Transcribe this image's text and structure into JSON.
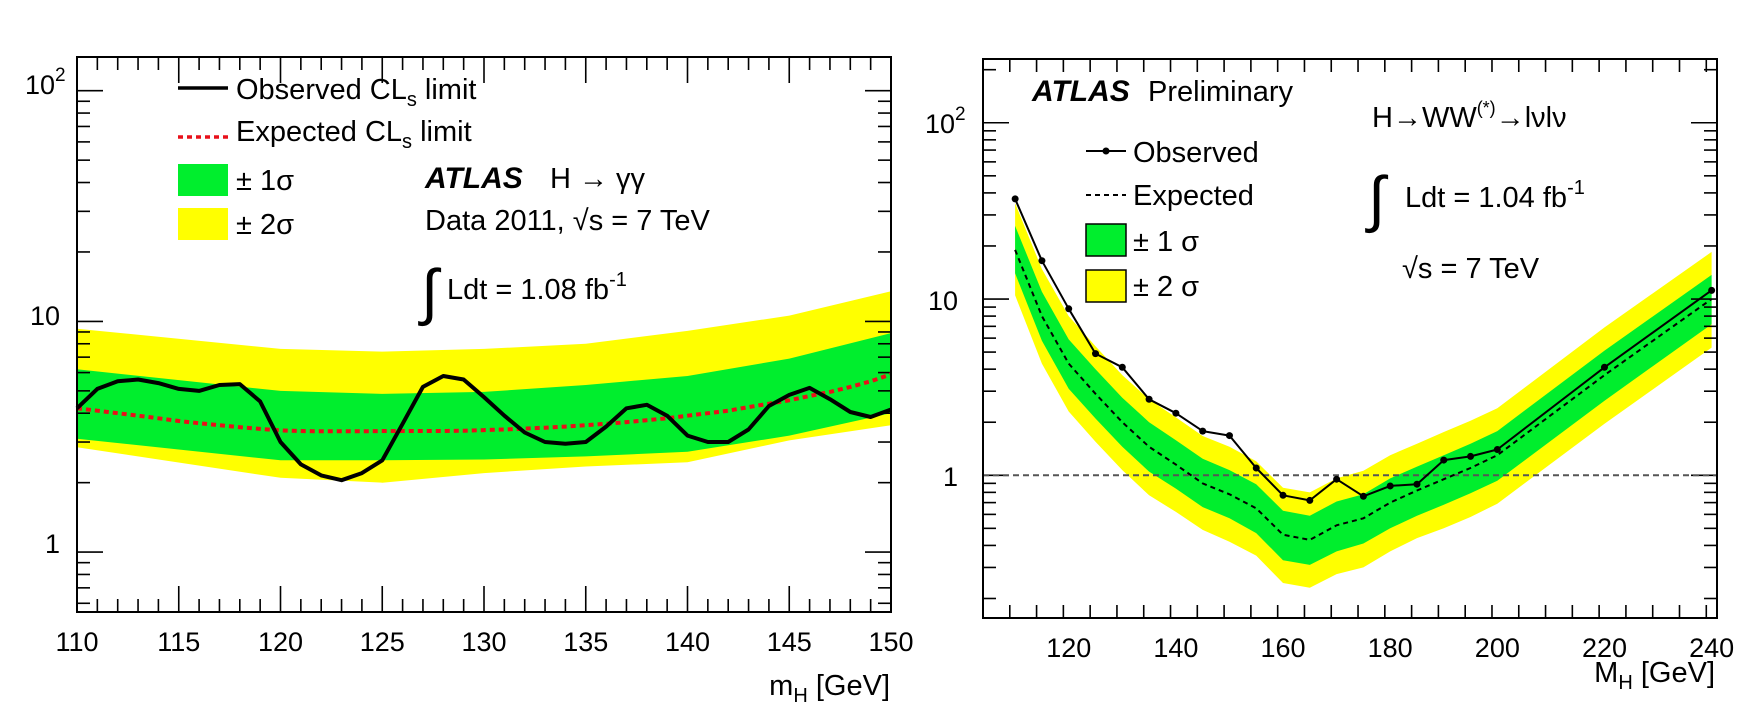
{
  "chart_data": [
    {
      "type": "line",
      "scale": "log-y",
      "x": [
        110,
        111,
        112,
        113,
        114,
        115,
        116,
        117,
        118,
        119,
        120,
        121,
        122,
        123,
        124,
        125,
        126,
        127,
        128,
        129,
        130,
        131,
        132,
        133,
        134,
        135,
        136,
        137,
        138,
        139,
        140,
        141,
        142,
        143,
        144,
        145,
        146,
        147,
        148,
        149,
        150
      ],
      "series": [
        {
          "name": "observed",
          "values": [
            4.2,
            5.1,
            5.5,
            5.6,
            5.4,
            5.1,
            5.0,
            5.3,
            5.35,
            4.5,
            3.0,
            2.4,
            2.15,
            2.05,
            2.2,
            2.5,
            3.6,
            5.2,
            5.8,
            5.6,
            4.7,
            3.9,
            3.3,
            3.0,
            2.95,
            3.0,
            3.5,
            4.2,
            4.35,
            3.9,
            3.2,
            3.0,
            3.0,
            3.4,
            4.3,
            4.8,
            5.15,
            4.6,
            4.05,
            3.85,
            4.15
          ]
        },
        {
          "name": "expected",
          "values": [
            4.2,
            4.1,
            4.0,
            3.9,
            3.8,
            3.7,
            3.62,
            3.55,
            3.48,
            3.42,
            3.37,
            3.35,
            3.34,
            3.34,
            3.34,
            3.35,
            3.35,
            3.35,
            3.35,
            3.36,
            3.38,
            3.4,
            3.43,
            3.46,
            3.5,
            3.55,
            3.6,
            3.66,
            3.73,
            3.8,
            3.9,
            4.0,
            4.1,
            4.25,
            4.4,
            4.55,
            4.75,
            4.95,
            5.2,
            5.5,
            5.9
          ]
        }
      ],
      "band_x": [
        110,
        120,
        125,
        130,
        135,
        140,
        145,
        150
      ],
      "band_1sigma_low": [
        3.1,
        2.5,
        2.5,
        2.52,
        2.6,
        2.72,
        3.2,
        4.0
      ],
      "band_1sigma_high": [
        6.2,
        5.0,
        4.85,
        4.95,
        5.3,
        5.8,
        6.9,
        8.9
      ],
      "band_2sigma_low": [
        2.85,
        2.1,
        2.0,
        2.2,
        2.35,
        2.45,
        3.05,
        3.55
      ],
      "band_2sigma_high": [
        9.3,
        7.6,
        7.4,
        7.6,
        8.0,
        9.1,
        10.6,
        13.5
      ],
      "xlim": [
        110,
        150
      ],
      "ylim": [
        0.55,
        140
      ],
      "x_ticks": [
        "110",
        "115",
        "120",
        "125",
        "130",
        "135",
        "140",
        "145",
        "150"
      ],
      "xlabel_main": "m",
      "xlabel_sub": "H",
      "xlabel_unit": " [GeV]",
      "legend": {
        "observed_label": "Observed CL",
        "observed_label_sub": "s",
        "observed_label_tail": " limit",
        "expected_label": "Expected CL",
        "expected_label_sub": "s",
        "expected_label_tail": " limit",
        "sigma1_label": "± 1σ",
        "sigma2_label": "± 2σ"
      },
      "annotation": {
        "experiment": "ATLAS",
        "channel": "H → γγ",
        "data_label_pre": "Data 2011, ",
        "sqrt_label": "√s",
        "data_label_post": " = 7 TeV",
        "integral_sign": "∫",
        "lumi_label": "Ldt = 1.08 fb",
        "lumi_sup": "-1"
      },
      "colors": {
        "observed": "#000000",
        "expected": "#e8101a",
        "sigma1": "#00ee2d",
        "sigma2": "#ffff00"
      }
    },
    {
      "type": "line",
      "scale": "log-y",
      "x": [
        110,
        115,
        120,
        125,
        130,
        135,
        140,
        145,
        150,
        155,
        160,
        165,
        170,
        175,
        180,
        185,
        190,
        195,
        200,
        220,
        240
      ],
      "series": [
        {
          "name": "observed",
          "values": [
            37,
            16.5,
            8.8,
            4.9,
            4.1,
            2.7,
            2.25,
            1.78,
            1.68,
            1.1,
            0.77,
            0.72,
            0.95,
            0.76,
            0.87,
            0.89,
            1.22,
            1.28,
            1.4,
            4.1,
            11.2
          ]
        },
        {
          "name": "expected",
          "values": [
            19,
            8.0,
            4.3,
            2.9,
            2.0,
            1.45,
            1.15,
            0.9,
            0.78,
            0.65,
            0.46,
            0.43,
            0.52,
            0.57,
            0.7,
            0.82,
            0.95,
            1.1,
            1.3,
            3.7,
            10.0
          ]
        }
      ],
      "band_x": [
        110,
        115,
        120,
        125,
        130,
        135,
        140,
        145,
        150,
        155,
        160,
        165,
        170,
        175,
        180,
        185,
        190,
        195,
        200,
        220,
        240
      ],
      "band_1sigma_low": [
        14,
        5.8,
        3.1,
        2.1,
        1.45,
        1.05,
        0.84,
        0.66,
        0.57,
        0.47,
        0.33,
        0.31,
        0.37,
        0.41,
        0.5,
        0.59,
        0.68,
        0.79,
        0.93,
        2.65,
        7.2
      ],
      "band_1sigma_high": [
        26,
        11,
        5.9,
        4.0,
        2.75,
        2.0,
        1.58,
        1.24,
        1.07,
        0.89,
        0.63,
        0.59,
        0.71,
        0.78,
        0.96,
        1.12,
        1.3,
        1.51,
        1.78,
        5.1,
        13.7
      ],
      "band_2sigma_low": [
        10.5,
        4.3,
        2.3,
        1.55,
        1.07,
        0.77,
        0.62,
        0.49,
        0.42,
        0.35,
        0.245,
        0.23,
        0.275,
        0.3,
        0.37,
        0.44,
        0.5,
        0.58,
        0.69,
        1.96,
        5.3
      ],
      "band_2sigma_high": [
        35,
        14.8,
        8.0,
        5.4,
        3.7,
        2.7,
        2.13,
        1.67,
        1.45,
        1.2,
        0.85,
        0.8,
        0.96,
        1.06,
        1.3,
        1.51,
        1.76,
        2.04,
        2.4,
        6.9,
        18.5
      ],
      "reference_line": 1,
      "xlim": [
        104,
        241
      ],
      "ylim": [
        0.155,
        230
      ],
      "x_ticks": [
        "120",
        "140",
        "160",
        "180",
        "200",
        "220",
        "240"
      ],
      "xlabel_main": "M",
      "xlabel_sub": "H",
      "xlabel_unit": " [GeV]",
      "legend": {
        "observed_label": "Observed",
        "expected_label": "Expected",
        "sigma1_label": "± 1 σ",
        "sigma2_label": "± 2 σ"
      },
      "annotation": {
        "experiment": "ATLAS",
        "status": " Preliminary",
        "channel_pre": "H→WW",
        "channel_sup": "(*)",
        "channel_post": "→lνlν",
        "integral_sign": "∫",
        "lumi_label": "Ldt = 1.04 fb",
        "lumi_sup": "-1",
        "sqrt_label": "√s",
        "energy_label": " = 7 TeV"
      },
      "colors": {
        "observed": "#000000",
        "expected": "#000000",
        "sigma1": "#00ee2d",
        "sigma2": "#ffff00",
        "reference": "#555555"
      }
    }
  ]
}
